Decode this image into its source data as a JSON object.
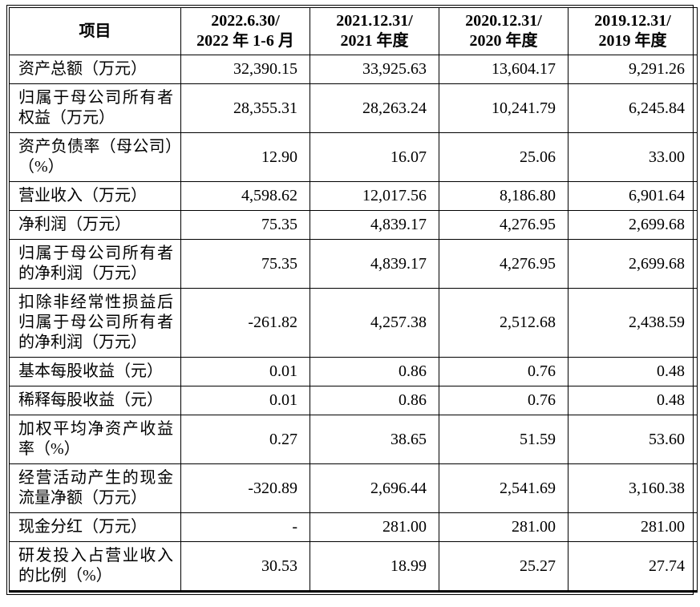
{
  "table": {
    "header": {
      "item_label": "项目",
      "periods": [
        {
          "line1": "2022.6.30/",
          "line2": "2022 年 1-6 月"
        },
        {
          "line1": "2021.12.31/",
          "line2": "2021 年度"
        },
        {
          "line1": "2020.12.31/",
          "line2": "2020 年度"
        },
        {
          "line1": "2019.12.31/",
          "line2": "2019 年度"
        }
      ]
    },
    "rows": [
      {
        "label": "资产总额（万元）",
        "values": [
          "32,390.15",
          "33,925.63",
          "13,604.17",
          "9,291.26"
        ]
      },
      {
        "label": "归属于母公司所有者权益（万元）",
        "values": [
          "28,355.31",
          "28,263.24",
          "10,241.79",
          "6,245.84"
        ]
      },
      {
        "label": "资产负债率（母公司）（%）",
        "values": [
          "12.90",
          "16.07",
          "25.06",
          "33.00"
        ]
      },
      {
        "label": "营业收入（万元）",
        "values": [
          "4,598.62",
          "12,017.56",
          "8,186.80",
          "6,901.64"
        ]
      },
      {
        "label": "净利润（万元）",
        "values": [
          "75.35",
          "4,839.17",
          "4,276.95",
          "2,699.68"
        ]
      },
      {
        "label": "归属于母公司所有者的净利润（万元）",
        "values": [
          "75.35",
          "4,839.17",
          "4,276.95",
          "2,699.68"
        ]
      },
      {
        "label": "扣除非经常性损益后归属于母公司所有者的净利润（万元）",
        "values": [
          "-261.82",
          "4,257.38",
          "2,512.68",
          "2,438.59"
        ]
      },
      {
        "label": "基本每股收益（元）",
        "values": [
          "0.01",
          "0.86",
          "0.76",
          "0.48"
        ]
      },
      {
        "label": "稀释每股收益（元）",
        "values": [
          "0.01",
          "0.86",
          "0.76",
          "0.48"
        ]
      },
      {
        "label": "加权平均净资产收益率（%）",
        "values": [
          "0.27",
          "38.65",
          "51.59",
          "53.60"
        ]
      },
      {
        "label": "经营活动产生的现金流量净额（万元）",
        "values": [
          "-320.89",
          "2,696.44",
          "2,541.69",
          "3,160.38"
        ]
      },
      {
        "label": "现金分红（万元）",
        "values": [
          "-",
          "281.00",
          "281.00",
          "281.00"
        ]
      },
      {
        "label": "研发投入占营业收入的比例（%）",
        "values": [
          "30.53",
          "18.99",
          "25.27",
          "27.74"
        ]
      }
    ]
  }
}
